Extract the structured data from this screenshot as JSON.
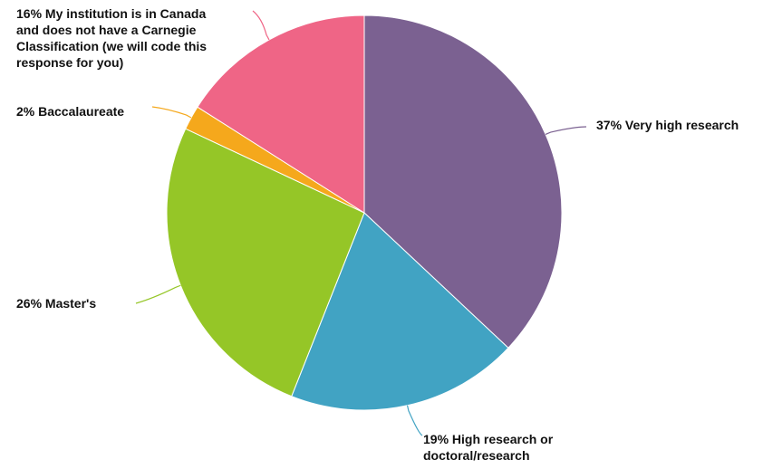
{
  "chart_data": {
    "type": "pie",
    "slices": [
      {
        "label": "Very high research",
        "value": 37,
        "percent_label": "37%",
        "color": "#7b6191",
        "text_lines": [
          "37% Very high research"
        ]
      },
      {
        "label": "High research or doctoral/research",
        "value": 19,
        "percent_label": "19%",
        "color": "#41a3c3",
        "text_lines": [
          "19% High research or",
          "doctoral/research"
        ]
      },
      {
        "label": "Master's",
        "value": 26,
        "percent_label": "26%",
        "color": "#95c627",
        "text_lines": [
          "26% Master's"
        ]
      },
      {
        "label": "Baccalaureate",
        "value": 2,
        "percent_label": "2%",
        "color": "#f5a81c",
        "text_lines": [
          "2% Baccalaureate"
        ]
      },
      {
        "label": "My institution is in Canada and does not have a Carnegie Classification (we will code this response for you)",
        "value": 16,
        "percent_label": "16%",
        "color": "#ef6586",
        "text_lines": [
          "16% My institution is in Canada",
          "and does not have a Carnegie",
          "Classification (we will code this",
          "response for you)"
        ]
      }
    ],
    "start_angle_deg": 0,
    "direction": "clockwise",
    "legend": "none",
    "labels": "outside with leader lines"
  }
}
